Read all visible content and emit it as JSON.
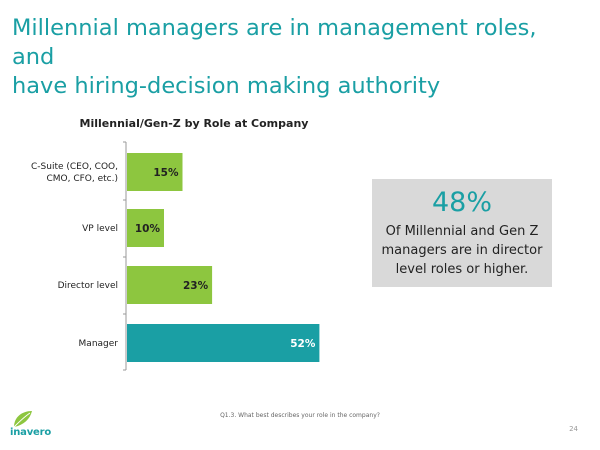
{
  "header": {
    "title_line1": "Millennial managers are in management roles, and",
    "title_line2": "have hiring-decision making authority"
  },
  "chart_data": {
    "type": "bar",
    "orientation": "horizontal",
    "title": "Millennial/Gen-Z by Role at Company",
    "categories": [
      [
        "C-Suite (CEO, COO,",
        "CMO, CFO, etc.)"
      ],
      [
        "VP level"
      ],
      [
        "Director level"
      ],
      [
        "Manager"
      ]
    ],
    "values": [
      15,
      10,
      23,
      52
    ],
    "value_labels": [
      "15%",
      "10%",
      "23%",
      "52%"
    ],
    "bar_colors": [
      "#8dc63f",
      "#8dc63f",
      "#8dc63f",
      "#1a9fa4"
    ],
    "label_colors": [
      "#222222",
      "#222222",
      "#222222",
      "#ffffff"
    ],
    "xlim": [
      0,
      100
    ],
    "xlabel": "",
    "ylabel": "",
    "grid": false
  },
  "callout": {
    "stat": "48%",
    "text": "Of Millennial and Gen Z managers are in director level roles or higher."
  },
  "footer": {
    "note": "Q1.3. What best describes your role in the company?",
    "page_number": "24",
    "logo_text": "inavero"
  },
  "colors": {
    "accent": "#1a9fa4",
    "green": "#8dc63f",
    "callout_bg": "#d9d9d9"
  }
}
